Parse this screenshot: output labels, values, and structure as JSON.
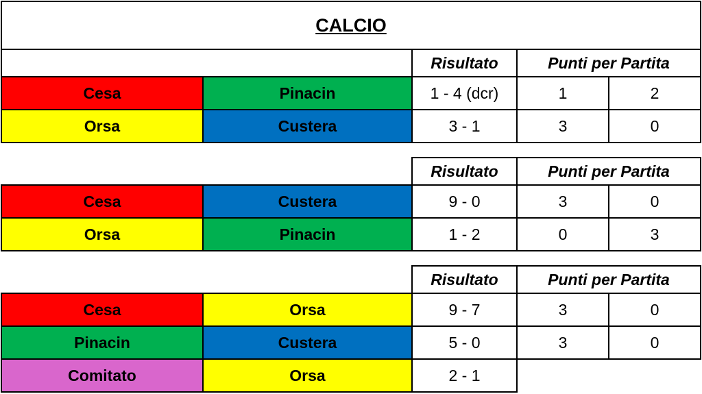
{
  "title": "CALCIO",
  "groups": [
    {
      "headers": {
        "result": "Risultato",
        "points": "Punti per Partita"
      },
      "matches": [
        {
          "home": {
            "name": "Cesa",
            "color": "#ff0000"
          },
          "away": {
            "name": "Pinacin",
            "color": "#00b050"
          },
          "result": "1 - 4 (dcr)",
          "points": [
            1,
            2
          ]
        },
        {
          "home": {
            "name": "Orsa",
            "color": "#ffff00"
          },
          "away": {
            "name": "Custera",
            "color": "#0070c0"
          },
          "result": "3 - 1",
          "points": [
            3,
            0
          ]
        }
      ]
    },
    {
      "headers": {
        "result": "Risultato",
        "points": "Punti per Partita"
      },
      "matches": [
        {
          "home": {
            "name": "Cesa",
            "color": "#ff0000"
          },
          "away": {
            "name": "Custera",
            "color": "#0070c0"
          },
          "result": "9 - 0",
          "points": [
            3,
            0
          ]
        },
        {
          "home": {
            "name": "Orsa",
            "color": "#ffff00"
          },
          "away": {
            "name": "Pinacin",
            "color": "#00b050"
          },
          "result": "1 - 2",
          "points": [
            0,
            3
          ]
        }
      ]
    },
    {
      "headers": {
        "result": "Risultato",
        "points": "Punti per Partita"
      },
      "matches": [
        {
          "home": {
            "name": "Cesa",
            "color": "#ff0000"
          },
          "away": {
            "name": "Orsa",
            "color": "#ffff00"
          },
          "result": "9 - 7",
          "points": [
            3,
            0
          ]
        },
        {
          "home": {
            "name": "Pinacin",
            "color": "#00b050"
          },
          "away": {
            "name": "Custera",
            "color": "#0070c0"
          },
          "result": "5 - 0",
          "points": [
            3,
            0
          ]
        },
        {
          "home": {
            "name": "Comitato",
            "color": "#d966cc"
          },
          "away": {
            "name": "Orsa",
            "color": "#ffff00"
          },
          "result": "2 - 1"
        }
      ]
    }
  ]
}
